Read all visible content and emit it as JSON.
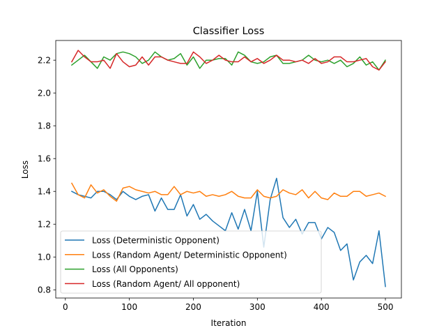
{
  "chart_data": {
    "type": "line",
    "title": "Classifier Loss",
    "xlabel": "Iteration",
    "ylabel": "Loss",
    "xlim": [
      -15,
      525
    ],
    "ylim": [
      0.75,
      2.32
    ],
    "xticks": [
      0,
      100,
      200,
      300,
      400,
      500
    ],
    "yticks": [
      0.8,
      1.0,
      1.2,
      1.4,
      1.6,
      1.8,
      2.0,
      2.2
    ],
    "ytick_labels": [
      "0.8",
      "1.0",
      "1.2",
      "1.4",
      "1.6",
      "1.8",
      "2.0",
      "2.2"
    ],
    "grid": false,
    "legend_position": "lower-left",
    "x": [
      10,
      20,
      30,
      40,
      50,
      60,
      70,
      80,
      90,
      100,
      110,
      120,
      130,
      140,
      150,
      160,
      170,
      180,
      190,
      200,
      210,
      220,
      230,
      240,
      250,
      260,
      270,
      280,
      290,
      300,
      310,
      320,
      330,
      340,
      350,
      360,
      370,
      380,
      390,
      400,
      410,
      420,
      430,
      440,
      450,
      460,
      470,
      480,
      490,
      500
    ],
    "series": [
      {
        "name": "Loss (Deterministic Opponent)",
        "color": "#1f77b4",
        "values": [
          1.4,
          1.38,
          1.37,
          1.36,
          1.4,
          1.4,
          1.38,
          1.35,
          1.4,
          1.37,
          1.35,
          1.37,
          1.38,
          1.28,
          1.36,
          1.29,
          1.29,
          1.38,
          1.25,
          1.32,
          1.23,
          1.26,
          1.22,
          1.19,
          1.16,
          1.27,
          1.17,
          1.29,
          1.16,
          1.4,
          1.06,
          1.35,
          1.48,
          1.24,
          1.18,
          1.23,
          1.14,
          1.21,
          1.21,
          1.11,
          1.18,
          1.15,
          1.04,
          1.08,
          0.86,
          0.97,
          1.01,
          0.96,
          1.16,
          0.82
        ]
      },
      {
        "name": "Loss (Random Agent/ Deterministic Opponent)",
        "color": "#ff7f0e",
        "values": [
          1.45,
          1.38,
          1.36,
          1.44,
          1.39,
          1.41,
          1.37,
          1.34,
          1.42,
          1.43,
          1.41,
          1.4,
          1.39,
          1.4,
          1.38,
          1.38,
          1.43,
          1.38,
          1.4,
          1.39,
          1.4,
          1.37,
          1.38,
          1.37,
          1.38,
          1.4,
          1.37,
          1.36,
          1.36,
          1.41,
          1.37,
          1.36,
          1.37,
          1.41,
          1.39,
          1.38,
          1.41,
          1.36,
          1.4,
          1.36,
          1.35,
          1.39,
          1.37,
          1.37,
          1.4,
          1.4,
          1.37,
          1.38,
          1.39,
          1.37
        ]
      },
      {
        "name": "Loss (All Opponents)",
        "color": "#2ca02c",
        "values": [
          2.17,
          2.2,
          2.23,
          2.19,
          2.15,
          2.22,
          2.2,
          2.24,
          2.25,
          2.24,
          2.22,
          2.18,
          2.2,
          2.25,
          2.22,
          2.2,
          2.21,
          2.24,
          2.17,
          2.22,
          2.15,
          2.2,
          2.2,
          2.21,
          2.21,
          2.17,
          2.25,
          2.23,
          2.19,
          2.18,
          2.19,
          2.22,
          2.23,
          2.18,
          2.18,
          2.19,
          2.2,
          2.23,
          2.2,
          2.19,
          2.2,
          2.18,
          2.2,
          2.16,
          2.18,
          2.22,
          2.17,
          2.19,
          2.14,
          2.2
        ]
      },
      {
        "name": "Loss (Random Agent/ All opponent)",
        "color": "#d62728",
        "values": [
          2.19,
          2.26,
          2.22,
          2.19,
          2.19,
          2.2,
          2.15,
          2.24,
          2.19,
          2.16,
          2.17,
          2.22,
          2.17,
          2.22,
          2.22,
          2.2,
          2.19,
          2.18,
          2.18,
          2.25,
          2.22,
          2.18,
          2.2,
          2.23,
          2.2,
          2.19,
          2.19,
          2.22,
          2.19,
          2.21,
          2.18,
          2.2,
          2.23,
          2.2,
          2.2,
          2.19,
          2.2,
          2.18,
          2.21,
          2.18,
          2.19,
          2.22,
          2.22,
          2.19,
          2.19,
          2.2,
          2.21,
          2.16,
          2.14,
          2.19
        ]
      }
    ]
  }
}
